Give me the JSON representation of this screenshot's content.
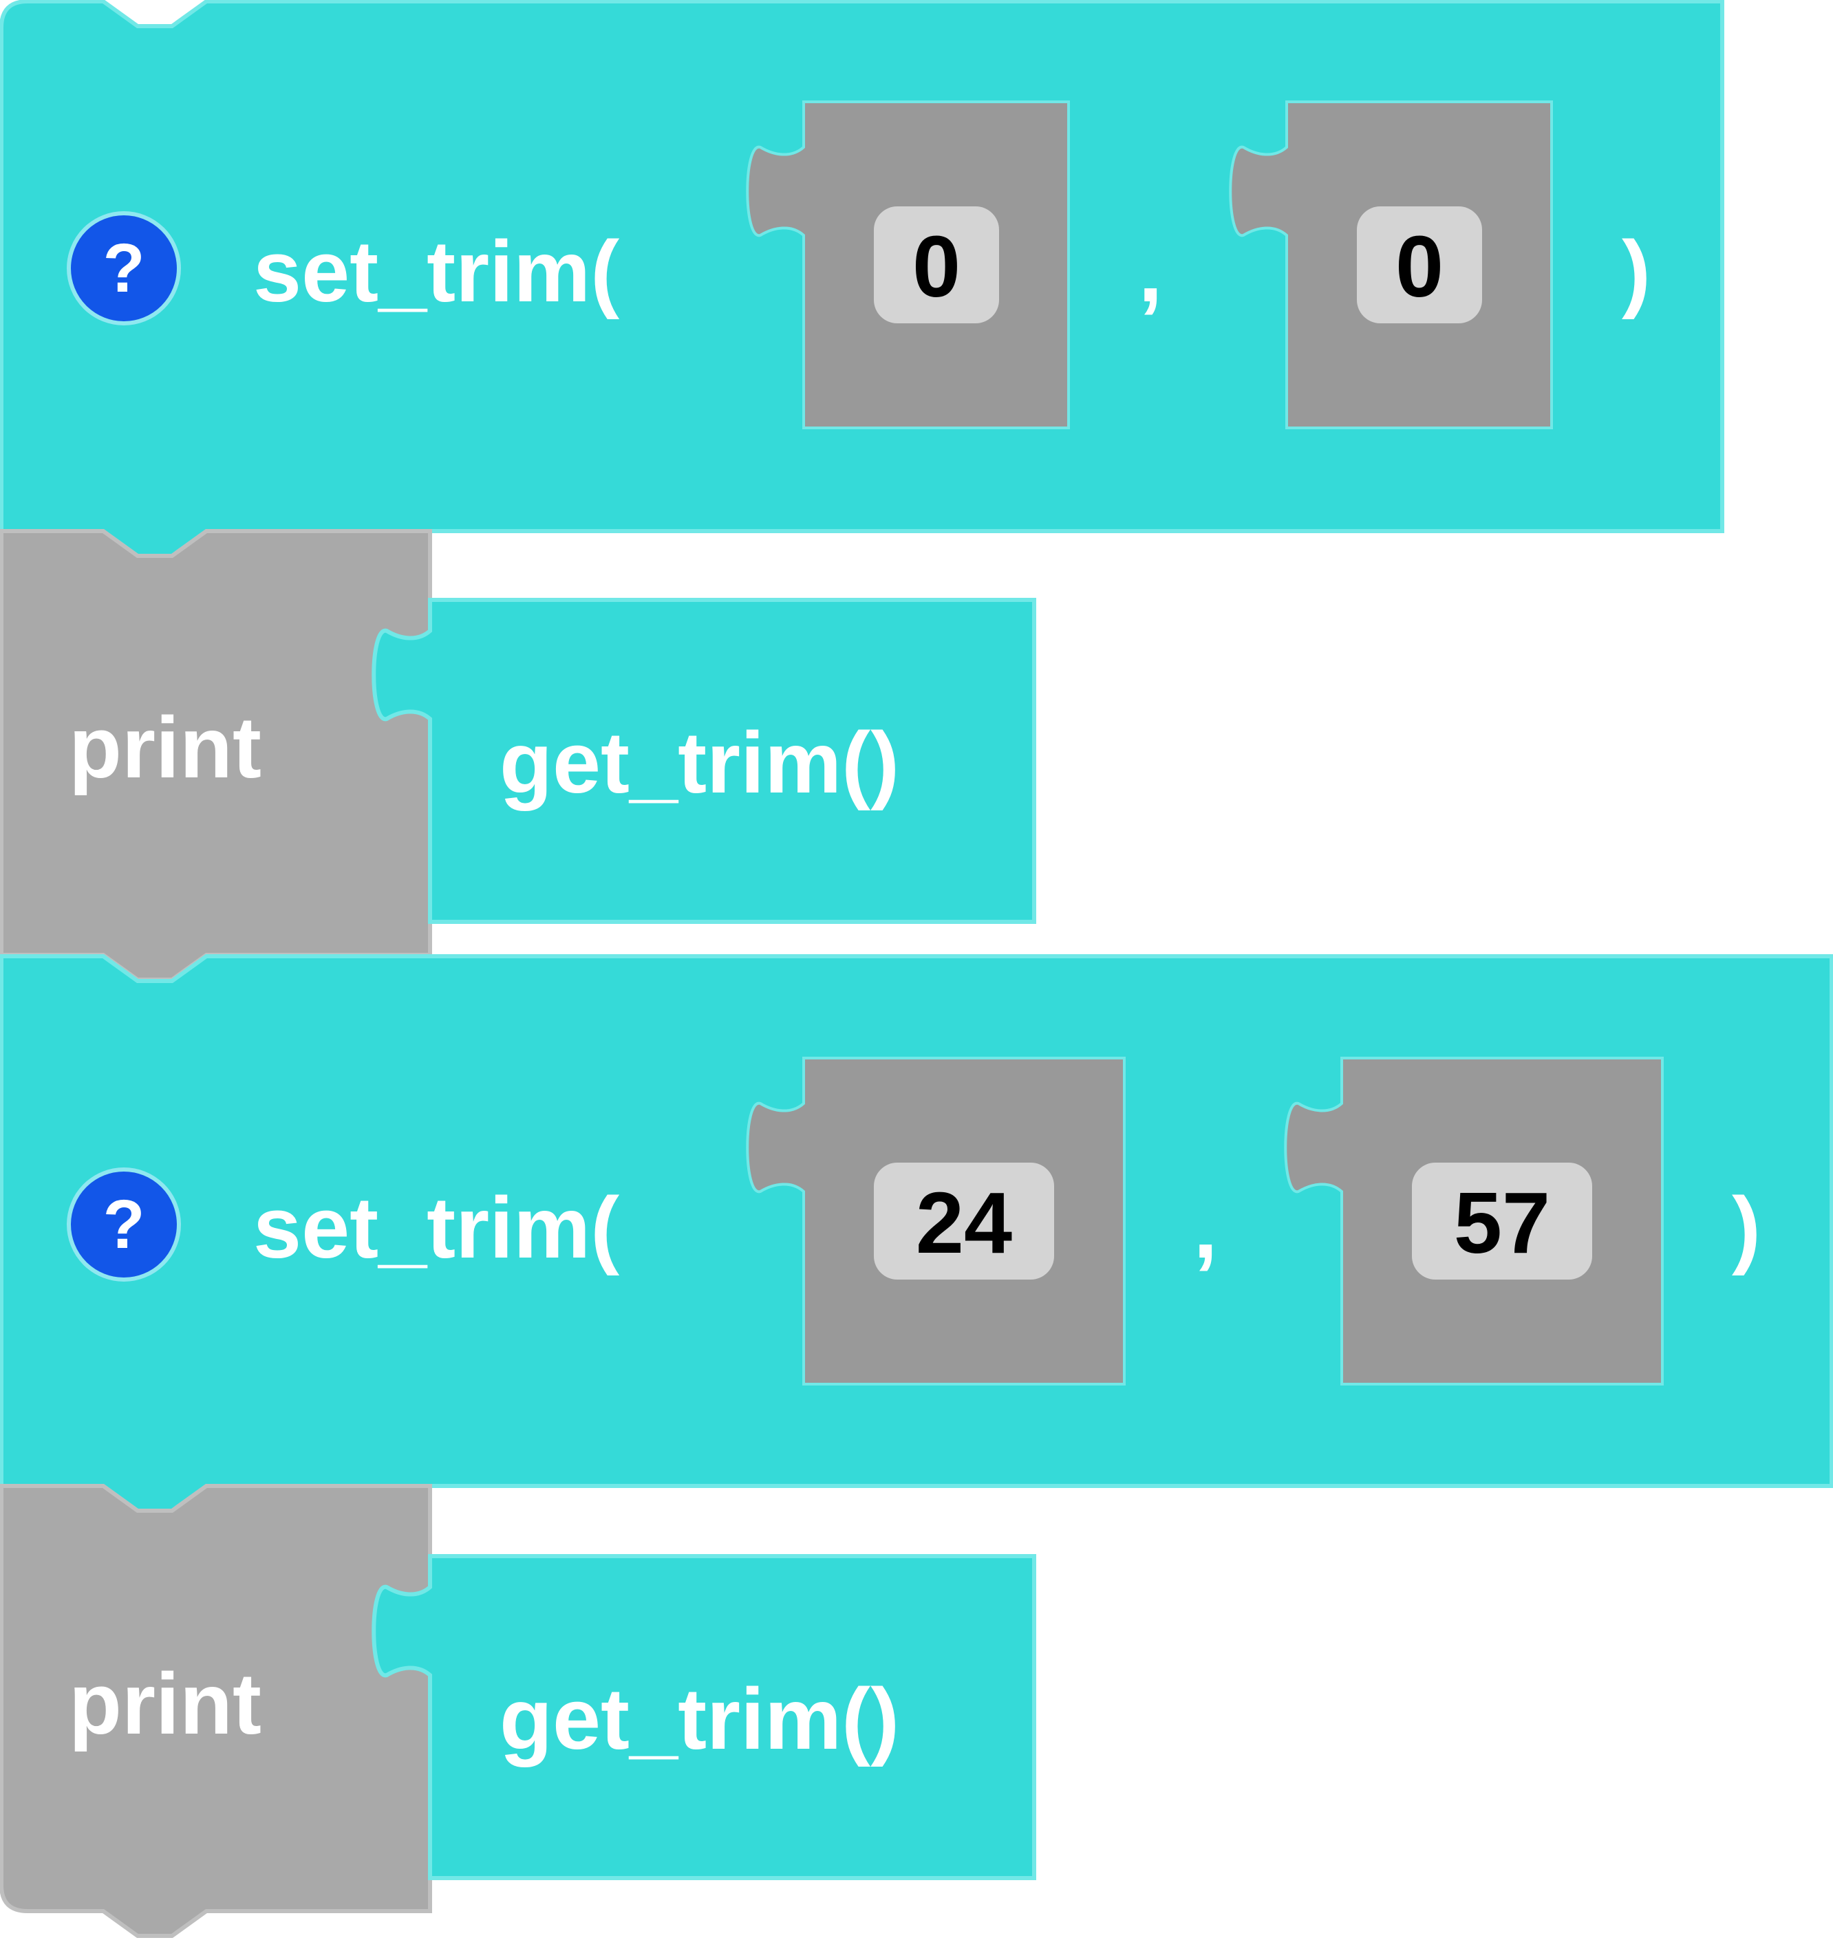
{
  "colors": {
    "block_cyan": "#35dad8",
    "block_cyan_border": "#71e8e7",
    "block_gray": "#a9a9a9",
    "block_gray_border": "#bfbfbf",
    "value_slot_gray": "#999999",
    "number_field_bg": "#d4d4d4",
    "help_icon_blue": "#1256e8",
    "label_white": "#ffffff",
    "number_text": "#000000"
  },
  "blocks": [
    {
      "kind": "set_trim",
      "help_icon": "question-mark-icon",
      "help_symbol": "?",
      "label_open": "set_trim(",
      "arg1": "0",
      "separator": ",",
      "arg2": "0",
      "label_close": ")"
    },
    {
      "kind": "print",
      "label": "print",
      "inner_label": "get_trim()"
    },
    {
      "kind": "set_trim",
      "help_icon": "question-mark-icon",
      "help_symbol": "?",
      "label_open": "set_trim(",
      "arg1": "24",
      "separator": ",",
      "arg2": "57",
      "label_close": ")"
    },
    {
      "kind": "print",
      "label": "print",
      "inner_label": "get_trim()"
    }
  ]
}
